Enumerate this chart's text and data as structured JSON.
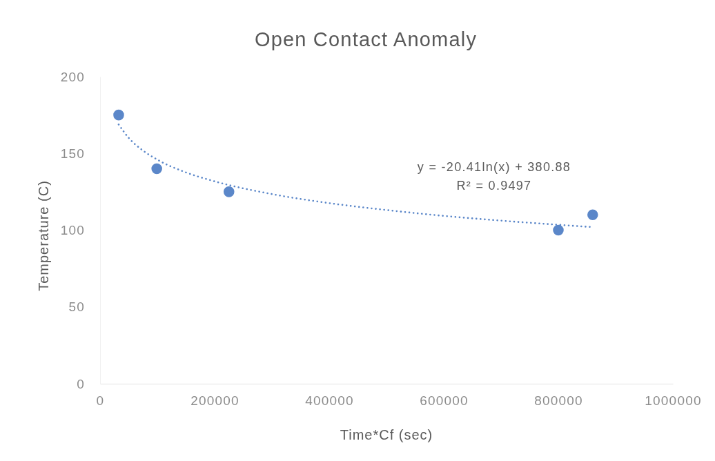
{
  "chart_data": {
    "type": "scatter",
    "title": "Open Contact Anomaly",
    "xlabel": "Time*Cf (sec)",
    "ylabel": "Temperature (C)",
    "xlim": [
      0,
      1000000
    ],
    "xticks": [
      0,
      200000,
      400000,
      600000,
      800000,
      1000000
    ],
    "ylim": [
      0,
      200
    ],
    "yticks": [
      0,
      50,
      100,
      150,
      200
    ],
    "grid": false,
    "marker": "circle",
    "annotations": [
      "y = -20.41ln(x) + 380.88",
      "R² = 0.9497"
    ],
    "series": [
      {
        "color": "#5b87c9",
        "x": [
          32500,
          99000,
          225000,
          800000,
          860000
        ],
        "values": [
          175,
          140,
          125,
          100,
          110
        ]
      },
      {
        "type": "line",
        "color": "#5b87c9",
        "marker": "none",
        "line_style": "dotted",
        "x": [
          32500,
          50000,
          75000,
          100000,
          150000,
          200000,
          300000,
          400000,
          500000,
          600000,
          700000,
          800000,
          860000
        ],
        "values": [
          168.8,
          160.1,
          151.8,
          145.9,
          137.6,
          131.8,
          123.5,
          117.6,
          113.1,
          109.3,
          106.2,
          103.5,
          102.0
        ]
      }
    ]
  }
}
